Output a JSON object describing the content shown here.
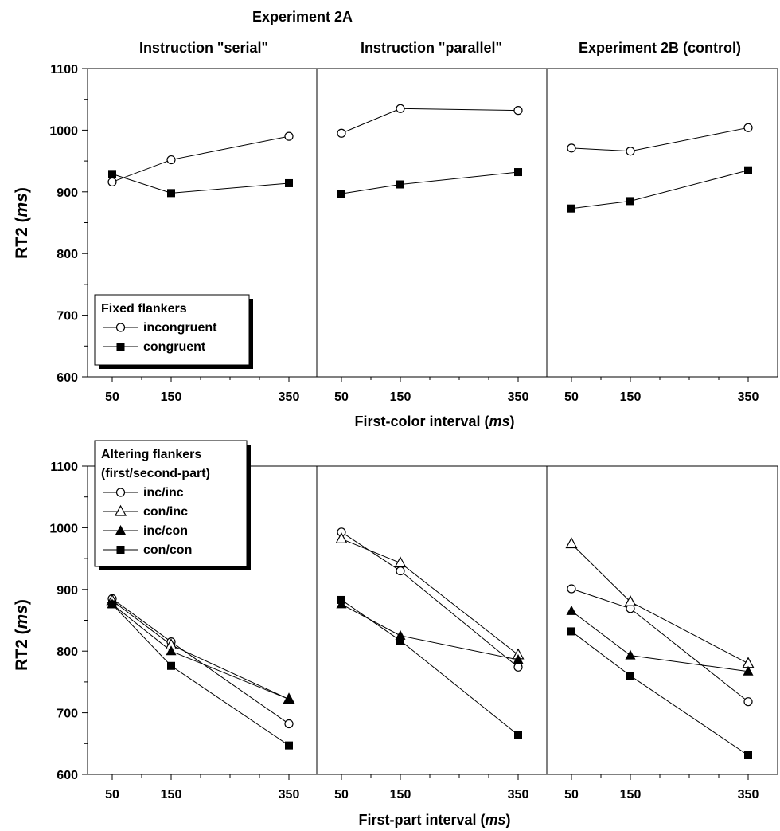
{
  "figure": {
    "top_title": "Experiment 2A",
    "column_titles": [
      "Instruction \"serial\"",
      "Instruction \"parallel\"",
      "Experiment 2B (control)"
    ],
    "top_xlabel_text": "First-color interval (",
    "bottom_xlabel_text": "First-part interval (",
    "xlabel_unit": "ms",
    "xlabel_close": ")",
    "ylabel_text": "RT2 (",
    "ylabel_unit": "ms",
    "ylabel_close": ")"
  },
  "chart_data": [
    {
      "type": "line",
      "row": "top",
      "panel": "Instruction \"serial\"",
      "x": [
        50,
        150,
        350
      ],
      "x_tick_labels": [
        "50",
        "150",
        "350"
      ],
      "ylim": [
        600,
        1100
      ],
      "y_ticks": [
        600,
        700,
        800,
        900,
        1000,
        1100
      ],
      "legend": {
        "title": "Fixed flankers",
        "position": "bottom-left"
      },
      "series": [
        {
          "name": "incongruent",
          "marker": "open-circle",
          "values": [
            916,
            952,
            990
          ]
        },
        {
          "name": "congruent",
          "marker": "filled-square",
          "values": [
            929,
            898,
            914
          ]
        }
      ]
    },
    {
      "type": "line",
      "row": "top",
      "panel": "Instruction \"parallel\"",
      "x": [
        50,
        150,
        350
      ],
      "x_tick_labels": [
        "50",
        "150",
        "350"
      ],
      "ylim": [
        600,
        1100
      ],
      "series": [
        {
          "name": "incongruent",
          "marker": "open-circle",
          "values": [
            995,
            1035,
            1032
          ]
        },
        {
          "name": "congruent",
          "marker": "filled-square",
          "values": [
            897,
            912,
            932
          ]
        }
      ]
    },
    {
      "type": "line",
      "row": "top",
      "panel": "Experiment 2B (control)",
      "x": [
        50,
        150,
        350
      ],
      "x_tick_labels": [
        "50",
        "150",
        "350"
      ],
      "ylim": [
        600,
        1100
      ],
      "series": [
        {
          "name": "incongruent",
          "marker": "open-circle",
          "values": [
            971,
            966,
            1004
          ]
        },
        {
          "name": "congruent",
          "marker": "filled-square",
          "values": [
            873,
            885,
            935
          ]
        }
      ]
    },
    {
      "type": "line",
      "row": "bottom",
      "panel": "Instruction \"serial\"",
      "x": [
        50,
        150,
        350
      ],
      "x_tick_labels": [
        "50",
        "150",
        "350"
      ],
      "ylim": [
        600,
        1100
      ],
      "y_ticks": [
        600,
        700,
        800,
        900,
        1000,
        1100
      ],
      "legend": {
        "title": "Altering flankers",
        "subtitle": "(first/second-part)",
        "position": "top-left"
      },
      "series": [
        {
          "name": "inc/inc",
          "marker": "open-circle",
          "values": [
            885,
            815,
            682
          ]
        },
        {
          "name": "con/inc",
          "marker": "open-triangle",
          "values": [
            882,
            810,
            722
          ]
        },
        {
          "name": "inc/con",
          "marker": "filled-triangle",
          "values": [
            876,
            800,
            722
          ]
        },
        {
          "name": "con/con",
          "marker": "filled-square",
          "values": [
            876,
            776,
            647
          ]
        }
      ]
    },
    {
      "type": "line",
      "row": "bottom",
      "panel": "Instruction \"parallel\"",
      "x": [
        50,
        150,
        350
      ],
      "x_tick_labels": [
        "50",
        "150",
        "350"
      ],
      "ylim": [
        600,
        1100
      ],
      "series": [
        {
          "name": "inc/inc",
          "marker": "open-circle",
          "values": [
            993,
            930,
            774
          ]
        },
        {
          "name": "con/inc",
          "marker": "open-triangle",
          "values": [
            982,
            943,
            794
          ]
        },
        {
          "name": "inc/con",
          "marker": "filled-triangle",
          "values": [
            876,
            825,
            786
          ]
        },
        {
          "name": "con/con",
          "marker": "filled-square",
          "values": [
            883,
            817,
            664
          ]
        }
      ]
    },
    {
      "type": "line",
      "row": "bottom",
      "panel": "Experiment 2B (control)",
      "x": [
        50,
        150,
        350
      ],
      "x_tick_labels": [
        "50",
        "150",
        "350"
      ],
      "ylim": [
        600,
        1100
      ],
      "series": [
        {
          "name": "inc/inc",
          "marker": "open-circle",
          "values": [
            901,
            869,
            718
          ]
        },
        {
          "name": "con/inc",
          "marker": "open-triangle",
          "values": [
            974,
            880,
            780
          ]
        },
        {
          "name": "inc/con",
          "marker": "filled-triangle",
          "values": [
            865,
            793,
            767
          ]
        },
        {
          "name": "con/con",
          "marker": "filled-square",
          "values": [
            832,
            760,
            631
          ]
        }
      ]
    }
  ]
}
